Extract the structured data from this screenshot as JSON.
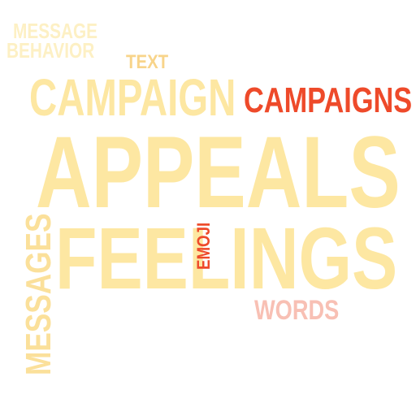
{
  "words": {
    "message": {
      "text": "MESSAGE",
      "color": "#fdf0c4"
    },
    "behavior": {
      "text": "BEHAVIOR",
      "color": "#fdf0c4"
    },
    "text": {
      "text": "TEXT",
      "color": "#f8d48a"
    },
    "campaign": {
      "text": "CAMPAIGN",
      "color": "#fde7a2"
    },
    "campaigns": {
      "text": "CAMPAIGNS",
      "color": "#ee4a2a"
    },
    "appeals": {
      "text": "APPEALS",
      "color": "#fde7a2"
    },
    "feelings": {
      "text": "FEELINGS",
      "color": "#fde7a2"
    },
    "emoji": {
      "text": "EMOJI",
      "color": "#ee4a2a"
    },
    "words": {
      "text": "WORDS",
      "color": "#f8c0b4"
    },
    "messages": {
      "text": "MESSAGES",
      "color": "#fbe09a"
    }
  }
}
